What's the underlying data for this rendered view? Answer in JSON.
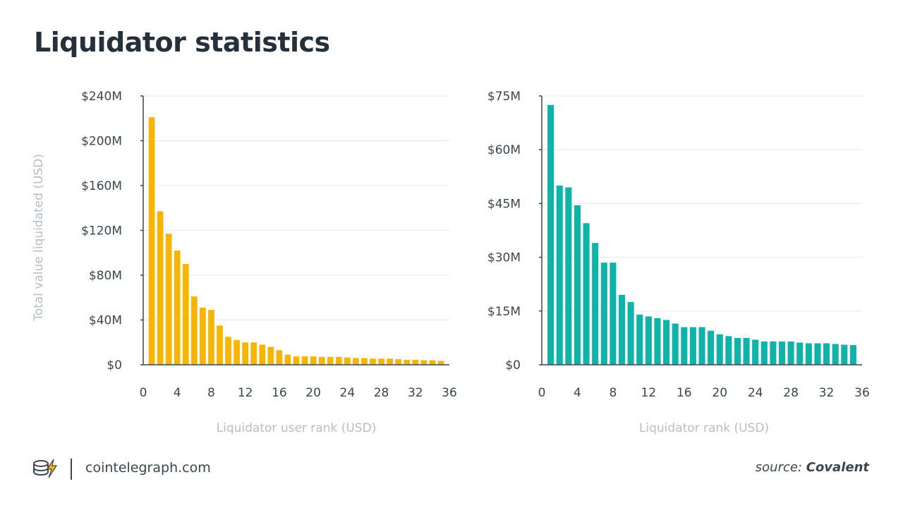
{
  "title": "Liquidator statistics",
  "footer": {
    "site": "cointelegraph.com",
    "source_prefix": "source: ",
    "source_name": "Covalent",
    "logo_icon": "cointelegraph-logo-icon"
  },
  "colors": {
    "left_bar": "#f7b500",
    "right_bar": "#10b3aa",
    "grid": "#e6e9ec",
    "axis_text": "#3a4650",
    "axis_label": "#b6bfc6"
  },
  "chart_data": [
    {
      "type": "bar",
      "title": "",
      "xlabel": "Liquidator user rank (USD)",
      "ylabel": "Total value liquidated (USD)",
      "x": [
        1,
        2,
        3,
        4,
        5,
        6,
        7,
        8,
        9,
        10,
        11,
        12,
        13,
        14,
        15,
        16,
        17,
        18,
        19,
        20,
        21,
        22,
        23,
        24,
        25,
        26,
        27,
        28,
        29,
        30,
        31,
        32,
        33,
        34,
        35
      ],
      "values": [
        221,
        137,
        117,
        102,
        90,
        61,
        51,
        49,
        35,
        25,
        22,
        20,
        20,
        18,
        16,
        13,
        9,
        7.5,
        7.5,
        7.5,
        7,
        7,
        7,
        6.5,
        6,
        6,
        5.5,
        5.5,
        5.5,
        5,
        4.5,
        4.5,
        4,
        4,
        3.5
      ],
      "xlim": [
        0,
        36
      ],
      "ylim": [
        0,
        240
      ],
      "x_ticks": [
        "0",
        "4",
        "8",
        "12",
        "16",
        "20",
        "24",
        "28",
        "32",
        "36"
      ],
      "y_ticks": [
        "$0",
        "$40M",
        "$80M",
        "$120M",
        "$160M",
        "$200M",
        "$240M"
      ],
      "grid": true
    },
    {
      "type": "bar",
      "title": "",
      "xlabel": "Liquidator rank (USD)",
      "ylabel": "",
      "x": [
        1,
        2,
        3,
        4,
        5,
        6,
        7,
        8,
        9,
        10,
        11,
        12,
        13,
        14,
        15,
        16,
        17,
        18,
        19,
        20,
        21,
        22,
        23,
        24,
        25,
        26,
        27,
        28,
        29,
        30,
        31,
        32,
        33,
        34,
        35
      ],
      "values": [
        72.5,
        50,
        49.5,
        44.5,
        39.5,
        34,
        28.5,
        28.5,
        19.5,
        17.5,
        14,
        13.5,
        13,
        12.5,
        11.5,
        10.5,
        10.5,
        10.5,
        9.5,
        8.5,
        8,
        7.5,
        7.5,
        7,
        6.5,
        6.5,
        6.5,
        6.5,
        6.2,
        6,
        6,
        6,
        5.8,
        5.6,
        5.5
      ],
      "xlim": [
        0,
        36
      ],
      "ylim": [
        0,
        75
      ],
      "x_ticks": [
        "0",
        "4",
        "8",
        "12",
        "16",
        "20",
        "24",
        "28",
        "32",
        "36"
      ],
      "y_ticks": [
        "$0",
        "$15M",
        "$30M",
        "$45M",
        "$60M",
        "$75M"
      ],
      "grid": true
    }
  ]
}
